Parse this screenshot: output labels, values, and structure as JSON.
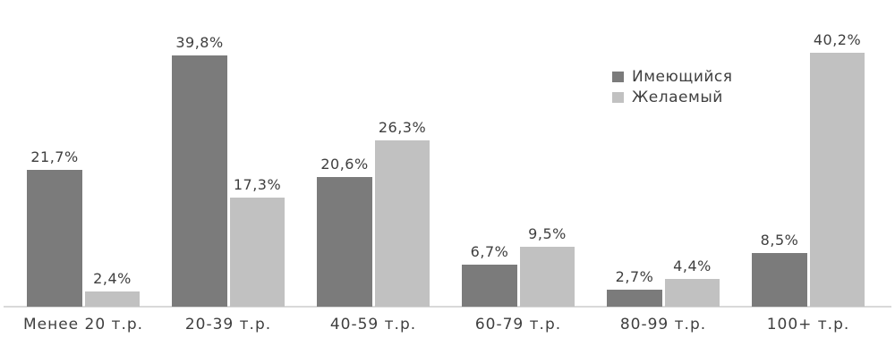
{
  "chart_data": {
    "type": "bar",
    "title": "",
    "xlabel": "",
    "ylabel": "",
    "categories": [
      "Менее 20 т.р.",
      "20-39 т.р.",
      "40-59 т.р.",
      "60-79 т.р.",
      "80-99 т.р.",
      "100+ т.р."
    ],
    "series": [
      {
        "name": "Имеющийся",
        "color": "#7b7b7b",
        "values": [
          21.7,
          39.8,
          20.6,
          6.7,
          2.7,
          8.5
        ],
        "labels": [
          "21,7%",
          "39,8%",
          "20,6%",
          "6,7%",
          "2,7%",
          "8,5%"
        ]
      },
      {
        "name": "Желаемый",
        "color": "#c1c1c1",
        "values": [
          2.4,
          17.3,
          26.3,
          9.5,
          4.4,
          40.2
        ],
        "labels": [
          "2,4%",
          "17,3%",
          "26,3%",
          "9,5%",
          "4,4%",
          "40,2%"
        ]
      }
    ],
    "ylim": [
      0,
      48.6
    ],
    "grid": false,
    "y_axis_visible": false,
    "legend_position": "top-right",
    "value_format": "comma-decimal-percent"
  },
  "colors": {
    "background": "#ffffff",
    "axis_line": "#d9d9d9",
    "text": "#3f3f3f"
  }
}
